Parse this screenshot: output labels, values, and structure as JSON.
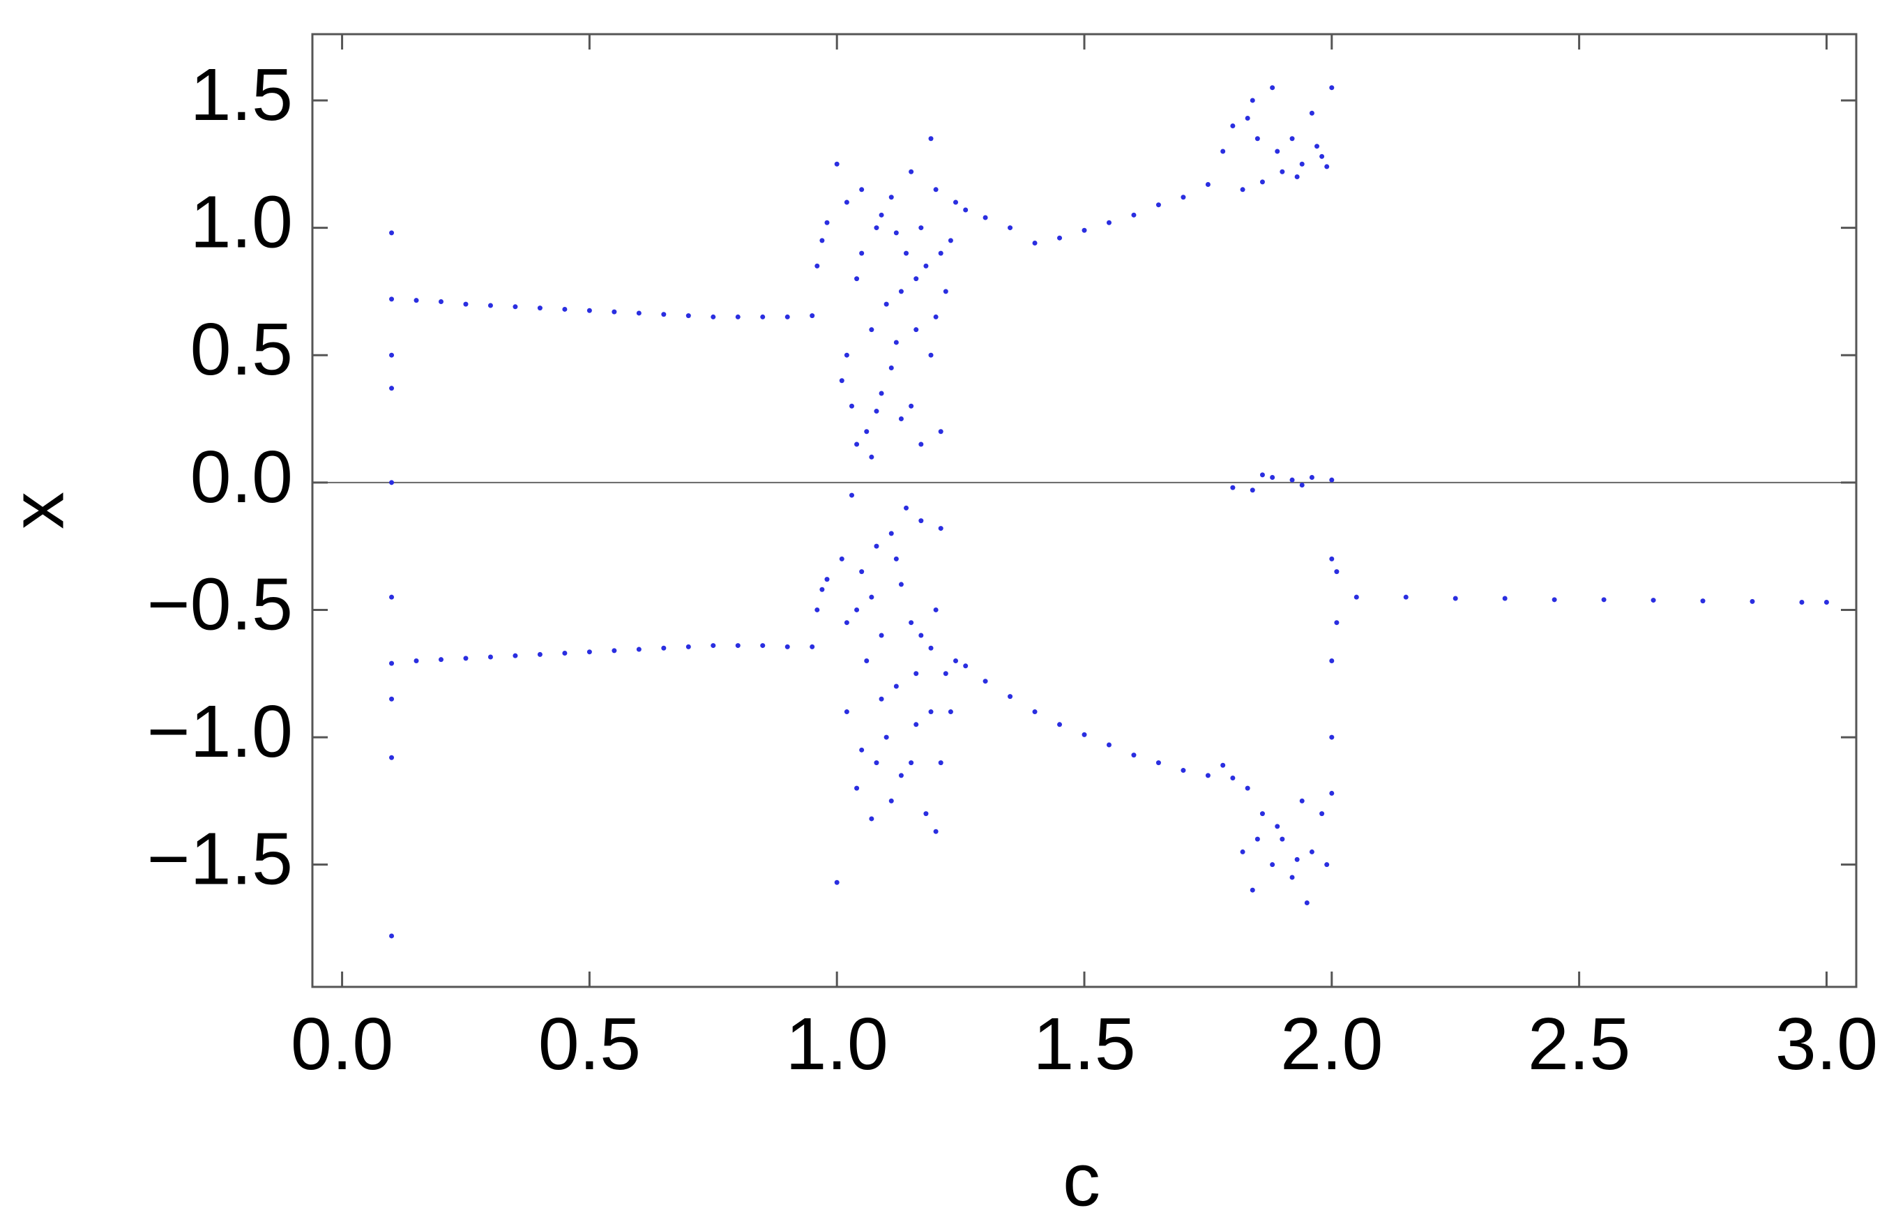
{
  "chart_data": {
    "type": "scatter",
    "xlabel": "c",
    "ylabel": "x",
    "color": "#2a2ee0",
    "xlim": [
      -0.06,
      3.06
    ],
    "ylim": [
      -1.98,
      1.76
    ],
    "xticks": [
      {
        "value": 0,
        "label": "0.0"
      },
      0.5,
      {
        "value": 1,
        "label": "1.0"
      },
      1.5,
      {
        "value": 2,
        "label": "2.0"
      },
      2.5,
      {
        "value": 3,
        "label": "3.0"
      }
    ],
    "yticks": [
      {
        "value": -1.5,
        "label": "−1.5"
      },
      {
        "value": -1,
        "label": "−1.0"
      },
      {
        "value": -0.5,
        "label": "−0.5"
      },
      {
        "value": 0,
        "label": "0.0"
      },
      0.5,
      {
        "value": 1,
        "label": "1.0"
      },
      1.5
    ],
    "x": [
      0.1,
      0.15,
      0.2,
      0.25,
      0.3,
      0.35,
      0.4,
      0.45,
      0.5,
      0.55,
      0.6,
      0.65,
      0.7,
      0.75,
      0.8,
      0.85,
      0.9,
      0.95,
      0.1,
      0.15,
      0.2,
      0.25,
      0.3,
      0.35,
      0.4,
      0.45,
      0.5,
      0.55,
      0.6,
      0.65,
      0.7,
      0.75,
      0.8,
      0.85,
      0.9,
      0.95,
      0.1,
      0.1,
      0.1,
      0.1,
      0.1,
      0.1,
      0.1,
      0.1,
      0.96,
      0.97,
      0.98,
      0.96,
      0.97,
      0.98,
      1.0,
      1.01,
      1.02,
      1.03,
      1.04,
      1.05,
      1.06,
      1.07,
      1.08,
      1.09,
      1.1,
      1.11,
      1.12,
      1.13,
      1.14,
      1.15,
      1.16,
      1.17,
      1.18,
      1.19,
      1.2,
      1.21,
      1.22,
      1.23,
      1.24,
      1.02,
      1.05,
      1.07,
      1.09,
      1.11,
      1.13,
      1.15,
      1.17,
      1.19,
      1.21,
      1.04,
      1.08,
      1.12,
      1.16,
      1.2,
      1.0,
      1.01,
      1.02,
      1.03,
      1.04,
      1.05,
      1.06,
      1.07,
      1.08,
      1.09,
      1.1,
      1.11,
      1.12,
      1.13,
      1.14,
      1.15,
      1.16,
      1.17,
      1.18,
      1.19,
      1.2,
      1.21,
      1.22,
      1.23,
      1.24,
      1.02,
      1.05,
      1.07,
      1.09,
      1.11,
      1.13,
      1.15,
      1.17,
      1.19,
      1.21,
      1.04,
      1.08,
      1.12,
      1.16,
      1.2,
      1.26,
      1.3,
      1.35,
      1.4,
      1.45,
      1.5,
      1.55,
      1.6,
      1.65,
      1.7,
      1.75,
      1.78,
      1.8,
      1.83,
      1.26,
      1.3,
      1.35,
      1.4,
      1.45,
      1.5,
      1.55,
      1.6,
      1.65,
      1.7,
      1.75,
      1.78,
      1.8,
      1.83,
      1.82,
      1.84,
      1.86,
      1.88,
      1.9,
      1.92,
      1.94,
      1.96,
      1.98,
      2.0,
      1.85,
      1.89,
      1.93,
      1.97,
      1.99,
      1.8,
      1.84,
      1.88,
      1.92,
      1.96,
      2.0,
      1.86,
      1.94,
      1.82,
      1.84,
      1.86,
      1.88,
      1.9,
      1.92,
      1.94,
      1.96,
      1.98,
      2.0,
      1.85,
      1.89,
      1.93,
      1.95,
      1.99,
      2.0,
      2.0,
      2.0,
      2.01,
      2.01,
      2.05,
      2.15,
      2.25,
      2.35,
      2.45,
      2.55,
      2.65,
      2.75,
      2.85,
      2.95,
      3.0
    ],
    "values": [
      0.72,
      0.715,
      0.71,
      0.7,
      0.695,
      0.69,
      0.685,
      0.68,
      0.675,
      0.67,
      0.665,
      0.66,
      0.655,
      0.65,
      0.65,
      0.65,
      0.65,
      0.655,
      -0.71,
      -0.7,
      -0.695,
      -0.69,
      -0.685,
      -0.68,
      -0.675,
      -0.67,
      -0.665,
      -0.66,
      -0.655,
      -0.65,
      -0.645,
      -0.64,
      -0.64,
      -0.64,
      -0.645,
      -0.645,
      0.98,
      0.5,
      0.37,
      0.0,
      -0.45,
      -0.85,
      -1.08,
      -1.78,
      0.85,
      0.95,
      1.02,
      -0.5,
      -0.42,
      -0.38,
      1.25,
      0.4,
      1.1,
      0.3,
      0.8,
      1.15,
      0.2,
      0.6,
      1.0,
      0.35,
      0.7,
      1.12,
      0.55,
      0.25,
      0.9,
      1.22,
      0.6,
      0.15,
      0.85,
      1.35,
      0.65,
      0.2,
      0.75,
      0.95,
      1.1,
      0.5,
      0.9,
      0.1,
      1.05,
      0.45,
      0.75,
      0.3,
      1.0,
      0.5,
      0.9,
      0.15,
      0.28,
      0.98,
      0.8,
      1.15,
      -1.57,
      -0.3,
      -0.9,
      -0.05,
      -1.2,
      -0.35,
      -0.7,
      -1.32,
      -0.25,
      -0.6,
      -1.0,
      -0.2,
      -0.8,
      -1.15,
      -0.1,
      -0.55,
      -0.95,
      -0.15,
      -1.3,
      -0.65,
      -1.37,
      -0.18,
      -0.75,
      -0.9,
      -0.7,
      -0.55,
      -1.05,
      -0.45,
      -0.85,
      -1.25,
      -0.4,
      -1.1,
      -0.6,
      -0.9,
      -1.1,
      -0.5,
      -1.1,
      -0.3,
      -0.75,
      -0.5,
      1.07,
      1.04,
      1.0,
      0.94,
      0.96,
      0.99,
      1.02,
      1.05,
      1.09,
      1.12,
      1.17,
      1.3,
      1.4,
      1.43,
      -0.72,
      -0.78,
      -0.84,
      -0.9,
      -0.95,
      -0.99,
      -1.03,
      -1.07,
      -1.1,
      -1.13,
      -1.15,
      -1.11,
      -1.16,
      -1.2,
      1.15,
      1.5,
      1.18,
      1.55,
      1.22,
      1.35,
      1.25,
      1.45,
      1.28,
      1.55,
      1.35,
      1.3,
      1.2,
      1.32,
      1.24,
      -0.02,
      -0.03,
      0.02,
      0.01,
      0.02,
      0.01,
      0.03,
      -0.01,
      -1.45,
      -1.6,
      -1.3,
      -1.5,
      -1.4,
      -1.55,
      -1.25,
      -1.45,
      -1.3,
      -1.22,
      -1.4,
      -1.35,
      -1.48,
      -1.65,
      -1.5,
      -0.3,
      -0.7,
      -1.0,
      -0.35,
      -0.55,
      -0.45,
      -0.45,
      -0.455,
      -0.455,
      -0.46,
      -0.46,
      -0.462,
      -0.465,
      -0.467,
      -0.47,
      -0.47
    ]
  }
}
